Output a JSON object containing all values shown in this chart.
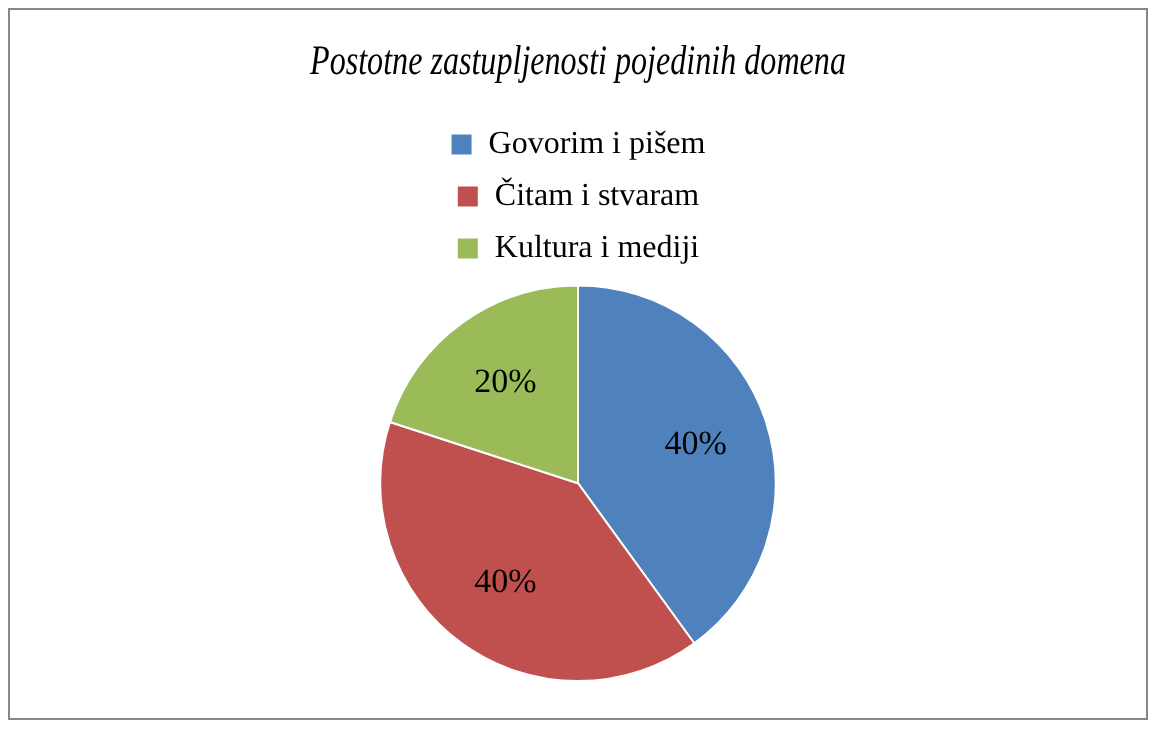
{
  "chart_data": {
    "type": "pie",
    "title": "Postotne zastupljenosti pojedinih domena",
    "categories": [
      "Govorim i pišem",
      "Čitam i stvaram",
      "Kultura i mediji"
    ],
    "values": [
      40,
      40,
      20
    ],
    "colors": [
      "#4f81bd",
      "#c0504d",
      "#9bbb59"
    ],
    "value_labels": [
      "40%",
      "40%",
      "20%"
    ],
    "legend": "top"
  }
}
